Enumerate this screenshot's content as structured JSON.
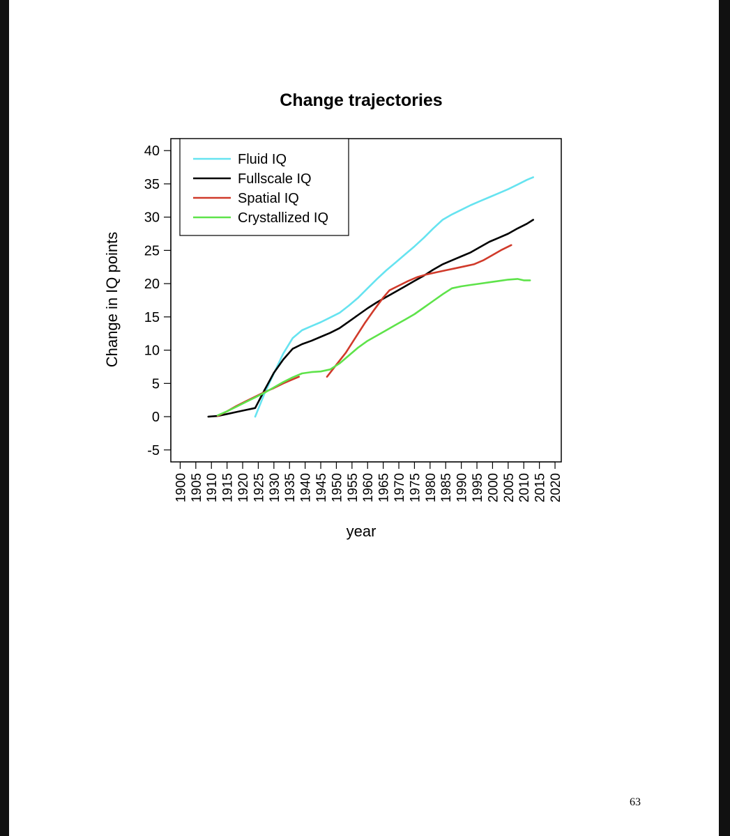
{
  "page": {
    "number": "63"
  },
  "chart_data": {
    "type": "line",
    "title": "Change trajectories",
    "xlabel": "year",
    "ylabel": "Change in IQ points",
    "xlim": [
      1897,
      2022
    ],
    "ylim": [
      -6.8,
      41.8
    ],
    "x_ticks": [
      1900,
      1905,
      1910,
      1915,
      1920,
      1925,
      1930,
      1935,
      1940,
      1945,
      1950,
      1955,
      1960,
      1965,
      1970,
      1975,
      1980,
      1985,
      1990,
      1995,
      2000,
      2005,
      2010,
      2015,
      2020
    ],
    "y_ticks": [
      -5,
      0,
      5,
      10,
      15,
      20,
      25,
      30,
      35,
      40
    ],
    "legend_position": "top-left",
    "grid": false,
    "series": [
      {
        "name": "Fluid IQ",
        "color": "#66e3f0",
        "x": [
          1924,
          1927,
          1930,
          1933,
          1936,
          1939,
          1942,
          1945,
          1948,
          1951,
          1954,
          1957,
          1960,
          1963,
          1966,
          1969,
          1972,
          1975,
          1978,
          1981,
          1984,
          1987,
          1990,
          1993,
          1996,
          1999,
          2002,
          2005,
          2008,
          2011,
          2013
        ],
        "y": [
          0,
          3.5,
          6.5,
          9.5,
          11.8,
          13.0,
          13.6,
          14.2,
          14.9,
          15.6,
          16.7,
          17.9,
          19.3,
          20.7,
          22.0,
          23.2,
          24.4,
          25.6,
          26.9,
          28.3,
          29.6,
          30.4,
          31.1,
          31.8,
          32.4,
          33.0,
          33.6,
          34.2,
          34.9,
          35.6,
          36.0
        ]
      },
      {
        "name": "Fullscale IQ",
        "color": "#000000",
        "x": [
          1909,
          1912,
          1915,
          1918,
          1921,
          1924,
          1927,
          1930,
          1933,
          1936,
          1939,
          1942,
          1945,
          1948,
          1951,
          1954,
          1957,
          1960,
          1963,
          1966,
          1969,
          1972,
          1975,
          1978,
          1981,
          1984,
          1987,
          1990,
          1993,
          1996,
          1999,
          2002,
          2005,
          2008,
          2011,
          2013
        ],
        "y": [
          0,
          0.1,
          0.4,
          0.7,
          1.0,
          1.3,
          4.0,
          6.6,
          8.6,
          10.2,
          10.9,
          11.4,
          12.0,
          12.6,
          13.3,
          14.3,
          15.3,
          16.3,
          17.2,
          18.0,
          18.8,
          19.6,
          20.4,
          21.2,
          22.1,
          22.9,
          23.5,
          24.1,
          24.7,
          25.5,
          26.3,
          26.9,
          27.5,
          28.3,
          29.0,
          29.6
        ]
      },
      {
        "name": "Spatial IQ",
        "color": "#d03a2a",
        "x": [
          1912,
          1915,
          1918,
          1921,
          1924,
          1927,
          1930,
          1933,
          1936,
          1938,
          null,
          1947,
          1950,
          1953,
          1956,
          1959,
          1962,
          1965,
          1967,
          1970,
          1973,
          1976,
          1979,
          1982,
          1985,
          1988,
          1991,
          1994,
          1997,
          2000,
          2003,
          2006
        ],
        "y": [
          0.1,
          0.8,
          1.6,
          2.3,
          3.0,
          3.7,
          4.3,
          5.0,
          5.6,
          6.0,
          null,
          6.0,
          7.8,
          9.6,
          11.8,
          14.0,
          16.0,
          17.9,
          19.0,
          19.7,
          20.4,
          21.0,
          21.4,
          21.7,
          22.0,
          22.3,
          22.6,
          22.9,
          23.5,
          24.3,
          25.1,
          25.8
        ]
      },
      {
        "name": "Crystallized IQ",
        "color": "#5ee34a",
        "x": [
          1912,
          1915,
          1918,
          1921,
          1924,
          1927,
          1930,
          1933,
          1936,
          1939,
          1942,
          1945,
          1948,
          1951,
          1954,
          1957,
          1960,
          1963,
          1966,
          1969,
          1972,
          1975,
          1978,
          1981,
          1984,
          1987,
          1990,
          1993,
          1996,
          1999,
          2002,
          2005,
          2008,
          2010,
          2012
        ],
        "y": [
          0.2,
          0.8,
          1.5,
          2.2,
          2.9,
          3.6,
          4.4,
          5.2,
          5.9,
          6.5,
          6.7,
          6.8,
          7.1,
          8.0,
          9.2,
          10.4,
          11.4,
          12.2,
          13.0,
          13.8,
          14.6,
          15.4,
          16.4,
          17.4,
          18.4,
          19.3,
          19.6,
          19.8,
          20.0,
          20.2,
          20.4,
          20.6,
          20.7,
          20.5,
          20.5
        ]
      }
    ]
  }
}
